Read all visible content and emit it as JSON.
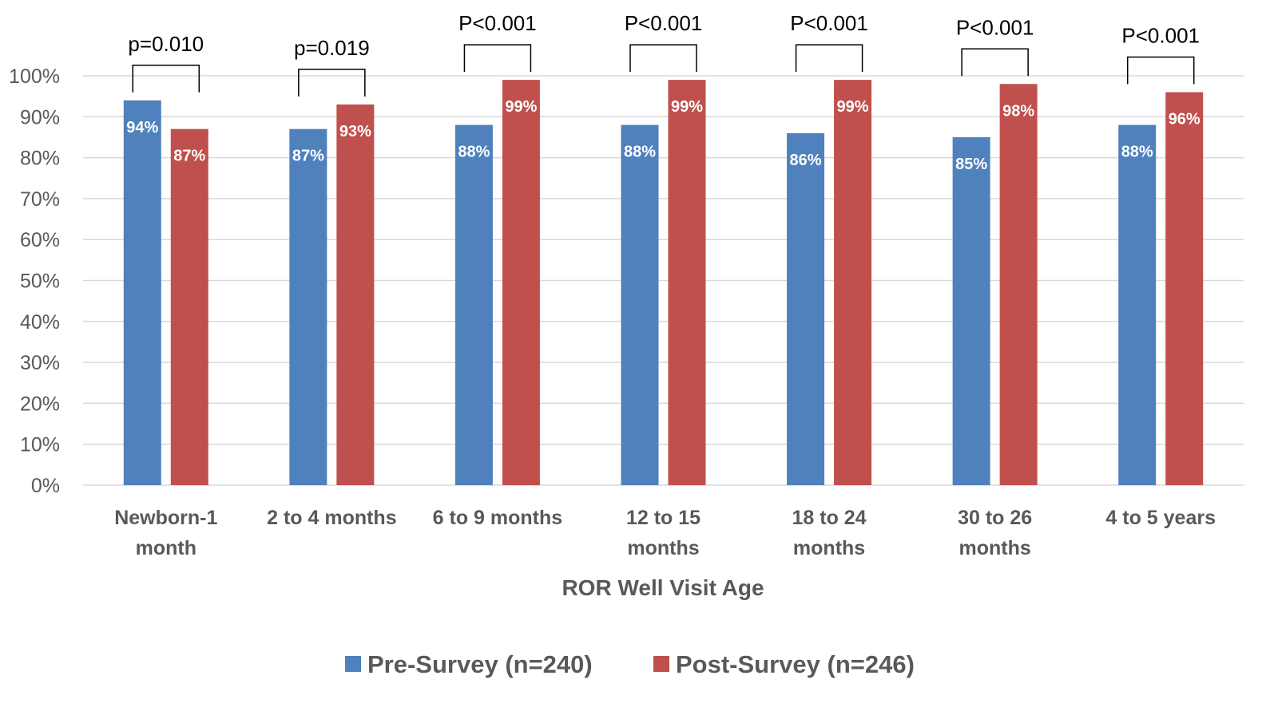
{
  "chart_data": {
    "type": "bar",
    "title": "",
    "xlabel": "ROR Well Visit Age",
    "ylabel": "",
    "ylim": [
      0,
      100
    ],
    "yticks": [
      "0%",
      "10%",
      "20%",
      "30%",
      "40%",
      "50%",
      "60%",
      "70%",
      "80%",
      "90%",
      "100%"
    ],
    "categories": [
      [
        "Newborn-1",
        "month"
      ],
      [
        "2 to 4 months"
      ],
      [
        "6 to 9 months"
      ],
      [
        "12 to 15",
        "months"
      ],
      [
        "18 to 24",
        "months"
      ],
      [
        "30 to 26",
        "months"
      ],
      [
        "4 to 5 years"
      ]
    ],
    "series": [
      {
        "name": "Pre-Survey (n=240)",
        "color": "#4f81bd",
        "values": [
          94,
          87,
          88,
          88,
          86,
          85,
          88
        ],
        "labels": [
          "94%",
          "87%",
          "88%",
          "88%",
          "86%",
          "85%",
          "88%"
        ]
      },
      {
        "name": "Post-Survey (n=246)",
        "color": "#c0504d",
        "values": [
          87,
          93,
          99,
          99,
          99,
          98,
          96
        ],
        "labels": [
          "87%",
          "93%",
          "99%",
          "99%",
          "99%",
          "98%",
          "96%"
        ]
      }
    ],
    "annotations": [
      "p=0.010",
      "p=0.019",
      "P<0.001",
      "P<0.001",
      "P<0.001",
      "P<0.001",
      "P<0.001"
    ],
    "grid": true,
    "legend_position": "bottom"
  }
}
